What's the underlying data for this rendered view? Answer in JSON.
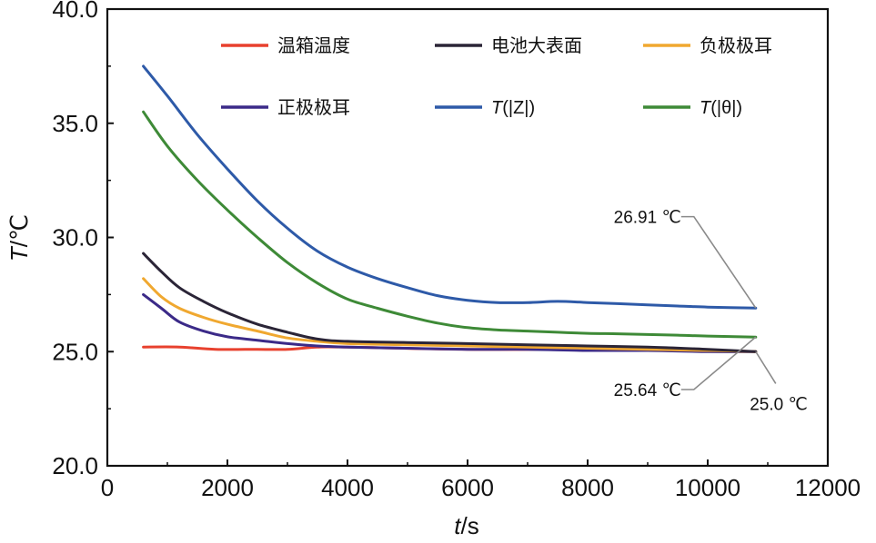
{
  "chart_data": {
    "type": "line",
    "xlabel": {
      "italic": "t",
      "unit": "/s"
    },
    "ylabel": {
      "italic": "T",
      "unit": "/℃"
    },
    "xlim": [
      0,
      12000
    ],
    "ylim": [
      20,
      40
    ],
    "xticks": [
      0,
      2000,
      4000,
      6000,
      8000,
      10000,
      12000
    ],
    "yticks": [
      20.0,
      25.0,
      30.0,
      35.0,
      40.0
    ],
    "xtick_labels": [
      "0",
      "2000",
      "4000",
      "6000",
      "8000",
      "10000",
      "12000"
    ],
    "ytick_labels": [
      "20.0",
      "25.0",
      "30.0",
      "35.0",
      "40.0"
    ],
    "grid": false,
    "legend_position": "top",
    "series": [
      {
        "name": "温箱温度",
        "color": "#e8412e",
        "x": [
          600,
          1200,
          1800,
          2500,
          3000,
          3500,
          4000,
          6000,
          8000,
          10000,
          10800
        ],
        "y": [
          25.2,
          25.2,
          25.1,
          25.1,
          25.1,
          25.2,
          25.2,
          25.1,
          25.1,
          25.05,
          25.0
        ]
      },
      {
        "name": "电池大表面",
        "color": "#2b2537",
        "x": [
          600,
          900,
          1200,
          1600,
          2000,
          2500,
          3000,
          3500,
          4000,
          5000,
          6000,
          7000,
          8000,
          9000,
          10000,
          10800
        ],
        "y": [
          29.3,
          28.5,
          27.8,
          27.2,
          26.7,
          26.2,
          25.85,
          25.55,
          25.45,
          25.4,
          25.35,
          25.3,
          25.25,
          25.2,
          25.1,
          25.0
        ]
      },
      {
        "name": "负极极耳",
        "color": "#f0a830",
        "x": [
          600,
          900,
          1200,
          1600,
          2000,
          2500,
          3000,
          3500,
          4000,
          5000,
          6000,
          7000,
          8000,
          9000,
          10000,
          10800
        ],
        "y": [
          28.2,
          27.4,
          26.9,
          26.5,
          26.2,
          25.9,
          25.6,
          25.45,
          25.35,
          25.3,
          25.25,
          25.2,
          25.15,
          25.1,
          25.05,
          25.0
        ]
      },
      {
        "name": "正极极耳",
        "color": "#3b2a88",
        "x": [
          600,
          900,
          1200,
          1600,
          2000,
          2500,
          3000,
          3500,
          4000,
          5000,
          6000,
          7000,
          8000,
          9000,
          10000,
          10800
        ],
        "y": [
          27.5,
          26.9,
          26.3,
          25.9,
          25.65,
          25.5,
          25.35,
          25.25,
          25.2,
          25.15,
          25.1,
          25.1,
          25.05,
          25.05,
          25.0,
          25.0
        ]
      },
      {
        "name": "T(|Z|)",
        "color": "#2e5aa8",
        "x": [
          600,
          1000,
          1500,
          2000,
          2500,
          3000,
          3500,
          4000,
          4500,
          5000,
          5500,
          6000,
          6500,
          7000,
          7500,
          8000,
          8500,
          9000,
          9500,
          10000,
          10800
        ],
        "y": [
          37.5,
          36.2,
          34.5,
          33.0,
          31.6,
          30.4,
          29.4,
          28.7,
          28.2,
          27.8,
          27.45,
          27.25,
          27.15,
          27.15,
          27.2,
          27.15,
          27.1,
          27.05,
          27.0,
          26.95,
          26.91
        ]
      },
      {
        "name": "T(|θ|)",
        "color": "#3e8a37",
        "x": [
          600,
          1000,
          1500,
          2000,
          2500,
          3000,
          3500,
          4000,
          4500,
          5000,
          5500,
          6000,
          6500,
          7000,
          7500,
          8000,
          8500,
          9000,
          9500,
          10000,
          10800
        ],
        "y": [
          35.5,
          34.0,
          32.5,
          31.2,
          30.0,
          28.9,
          28.0,
          27.3,
          26.9,
          26.55,
          26.25,
          26.05,
          25.95,
          25.9,
          25.85,
          25.8,
          25.78,
          25.75,
          25.72,
          25.68,
          25.64
        ]
      }
    ],
    "legend": [
      {
        "label": "温箱温度",
        "italic": "",
        "color": "#e8412e"
      },
      {
        "label": "电池大表面",
        "italic": "",
        "color": "#2b2537"
      },
      {
        "label": "负极极耳",
        "italic": "",
        "color": "#f0a830"
      },
      {
        "label": "正极极耳",
        "italic": "",
        "color": "#3b2a88"
      },
      {
        "label": "(|Z|)",
        "italic": "T",
        "color": "#2e5aa8"
      },
      {
        "label": "(|θ|)",
        "italic": "T",
        "color": "#3e8a37"
      }
    ],
    "annotations": [
      {
        "text": "26.91 ℃",
        "x": 10800,
        "y": 26.91,
        "side": "upper-left"
      },
      {
        "text": "25.64 ℃",
        "x": 10800,
        "y": 25.64,
        "side": "lower-left"
      },
      {
        "text": "25.0 ℃",
        "x": 10800,
        "y": 25.0,
        "side": "lower-right"
      }
    ]
  }
}
